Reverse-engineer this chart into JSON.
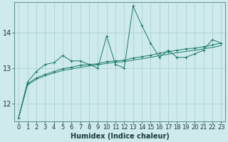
{
  "title": "",
  "xlabel": "Humidex (Indice chaleur)",
  "ylabel": "",
  "bg_color": "#ceeaea",
  "grid_color": "#aacccc",
  "line_color": "#1a7a6a",
  "x_values": [
    0,
    1,
    2,
    3,
    4,
    5,
    6,
    7,
    8,
    9,
    10,
    11,
    12,
    13,
    14,
    15,
    16,
    17,
    18,
    19,
    20,
    21,
    22,
    23
  ],
  "y1_values": [
    11.6,
    12.6,
    12.9,
    13.1,
    13.15,
    13.35,
    13.2,
    13.2,
    13.1,
    13.0,
    13.9,
    13.1,
    13.0,
    14.75,
    14.2,
    13.7,
    13.3,
    13.5,
    13.3,
    13.3,
    13.4,
    13.5,
    13.8,
    13.7
  ],
  "y2_values": [
    11.6,
    12.55,
    12.72,
    12.82,
    12.9,
    12.98,
    13.02,
    13.08,
    13.1,
    13.12,
    13.18,
    13.2,
    13.22,
    13.28,
    13.32,
    13.36,
    13.42,
    13.46,
    13.5,
    13.54,
    13.56,
    13.6,
    13.65,
    13.7
  ],
  "y3_values": [
    11.6,
    12.52,
    12.68,
    12.78,
    12.86,
    12.93,
    12.97,
    13.02,
    13.06,
    13.09,
    13.13,
    13.16,
    13.18,
    13.22,
    13.26,
    13.3,
    13.35,
    13.39,
    13.43,
    13.47,
    13.5,
    13.54,
    13.58,
    13.63
  ],
  "ylim": [
    11.5,
    14.85
  ],
  "xlim": [
    -0.5,
    23.5
  ],
  "yticks": [
    12,
    13,
    14
  ],
  "xticks": [
    0,
    1,
    2,
    3,
    4,
    5,
    6,
    7,
    8,
    9,
    10,
    11,
    12,
    13,
    14,
    15,
    16,
    17,
    18,
    19,
    20,
    21,
    22,
    23
  ],
  "tick_fontsize": 6,
  "xlabel_fontsize": 7
}
